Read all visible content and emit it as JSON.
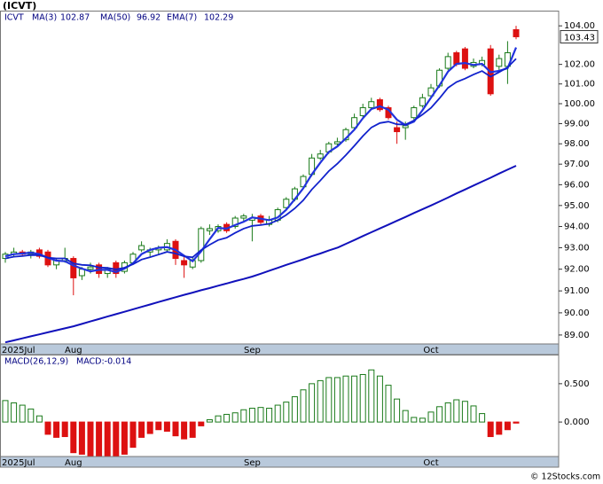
{
  "chart_data": [
    {
      "type": "candlestick",
      "title": "(ICVT)",
      "symbol": "ICVT",
      "log": true,
      "categories": [
        "2025Jul",
        null,
        null,
        null,
        null,
        null,
        null,
        null,
        "Aug",
        null,
        null,
        null,
        null,
        null,
        null,
        null,
        null,
        null,
        null,
        null,
        null,
        null,
        null,
        null,
        null,
        null,
        null,
        null,
        null,
        "Sep",
        null,
        null,
        null,
        null,
        null,
        null,
        null,
        null,
        null,
        null,
        null,
        null,
        null,
        null,
        null,
        null,
        null,
        null,
        null,
        null,
        "Oct",
        null,
        null,
        null,
        null,
        null,
        null,
        null,
        null,
        null,
        null
      ],
      "open": [
        92.5,
        92.7,
        92.8,
        92.7,
        92.9,
        92.8,
        92.2,
        92.4,
        92.5,
        91.7,
        92.0,
        92.2,
        91.8,
        92.3,
        91.9,
        92.3,
        92.9,
        92.8,
        92.9,
        92.9,
        93.3,
        92.4,
        92.1,
        92.4,
        93.8,
        93.8,
        94.1,
        94.0,
        94.4,
        94.3,
        94.5,
        94.1,
        94.3,
        94.9,
        95.3,
        95.9,
        96.5,
        97.3,
        97.6,
        98.0,
        98.2,
        98.8,
        99.4,
        99.8,
        100.2,
        99.8,
        98.8,
        98.8,
        99.3,
        99.9,
        100.4,
        100.9,
        101.8,
        102.6,
        102.8,
        101.9,
        102.0,
        102.8,
        101.9,
        101.9,
        103.8
      ],
      "high": [
        92.8,
        93.0,
        92.9,
        92.9,
        93.0,
        92.9,
        92.5,
        93.0,
        92.6,
        92.1,
        92.3,
        92.3,
        92.1,
        92.4,
        92.4,
        92.8,
        93.3,
        93.0,
        93.1,
        93.4,
        93.4,
        92.6,
        92.6,
        94.0,
        94.1,
        94.1,
        94.2,
        94.5,
        94.6,
        94.6,
        94.6,
        94.5,
        94.9,
        95.4,
        95.9,
        96.5,
        97.5,
        97.7,
        98.1,
        98.3,
        98.8,
        99.5,
        100.0,
        100.3,
        100.3,
        99.9,
        99.1,
        99.1,
        99.9,
        100.5,
        101.0,
        101.8,
        102.6,
        102.7,
        102.9,
        102.3,
        102.4,
        103.0,
        102.5,
        103.2,
        104.0
      ],
      "low": [
        92.3,
        92.6,
        92.6,
        92.5,
        92.5,
        92.1,
        92.0,
        92.3,
        90.8,
        91.5,
        91.8,
        91.6,
        91.6,
        91.6,
        91.8,
        92.2,
        92.8,
        92.6,
        92.7,
        92.8,
        92.2,
        91.6,
        92.0,
        92.3,
        93.6,
        93.7,
        93.7,
        93.9,
        94.2,
        93.3,
        94.1,
        94.0,
        94.2,
        94.8,
        95.2,
        95.8,
        96.4,
        97.2,
        97.5,
        97.9,
        98.1,
        98.7,
        99.3,
        99.7,
        99.6,
        99.2,
        98.0,
        98.2,
        99.2,
        99.8,
        100.3,
        100.8,
        101.7,
        101.9,
        101.7,
        101.8,
        101.9,
        100.4,
        101.7,
        101.0,
        103.3
      ],
      "close": [
        92.7,
        92.8,
        92.7,
        92.8,
        92.6,
        92.2,
        92.4,
        92.5,
        91.6,
        92.0,
        92.1,
        91.8,
        92.0,
        91.8,
        92.3,
        92.7,
        93.1,
        92.9,
        93.0,
        93.2,
        92.5,
        92.2,
        92.4,
        93.9,
        93.9,
        94.0,
        93.8,
        94.4,
        94.5,
        94.4,
        94.2,
        94.3,
        94.8,
        95.3,
        95.8,
        96.4,
        97.3,
        97.5,
        98.0,
        98.1,
        98.7,
        99.3,
        99.8,
        100.1,
        99.7,
        99.3,
        98.6,
        98.9,
        99.8,
        100.3,
        100.8,
        101.7,
        102.4,
        102.0,
        101.8,
        102.1,
        102.2,
        100.5,
        102.3,
        102.6,
        103.43
      ],
      "up_color": "#1a7a1a",
      "down_color": "#dd1111",
      "series": [
        {
          "name": "MA(3)",
          "color": "#2233dd",
          "width": 2.2,
          "values": [
            92.6,
            92.7,
            92.73,
            92.77,
            92.7,
            92.53,
            92.4,
            92.37,
            92.17,
            92.03,
            91.9,
            91.97,
            91.97,
            91.87,
            92.03,
            92.27,
            92.7,
            92.9,
            93.0,
            93.03,
            92.9,
            92.63,
            92.37,
            92.83,
            93.4,
            93.93,
            93.9,
            94.07,
            94.23,
            94.43,
            94.37,
            94.3,
            94.43,
            94.8,
            95.3,
            95.83,
            96.5,
            97.07,
            97.6,
            97.87,
            98.27,
            98.7,
            99.27,
            99.73,
            99.87,
            99.7,
            99.2,
            98.93,
            99.1,
            99.67,
            100.3,
            100.93,
            101.63,
            102.03,
            102.07,
            101.97,
            102.03,
            101.6,
            101.67,
            101.8,
            102.87
          ]
        },
        {
          "name": "MA(50)",
          "color": "#1111bb",
          "width": 2,
          "values": [
            88.67,
            88.76,
            88.85,
            88.94,
            89.03,
            89.12,
            89.21,
            89.3,
            89.39,
            89.5,
            89.61,
            89.72,
            89.83,
            89.94,
            90.05,
            90.16,
            90.27,
            90.38,
            90.49,
            90.6,
            90.71,
            90.82,
            90.92,
            91.03,
            91.13,
            91.24,
            91.34,
            91.45,
            91.55,
            91.66,
            91.79,
            91.93,
            92.06,
            92.2,
            92.33,
            92.46,
            92.6,
            92.73,
            92.87,
            93.0,
            93.18,
            93.36,
            93.55,
            93.73,
            93.91,
            94.09,
            94.27,
            94.45,
            94.64,
            94.82,
            95.0,
            95.19,
            95.38,
            95.58,
            95.77,
            95.96,
            96.15,
            96.34,
            96.54,
            96.73,
            96.92
          ]
        },
        {
          "name": "EMA(7)",
          "color": "#1122cc",
          "width": 1.8,
          "values": [
            92.5,
            92.58,
            92.61,
            92.66,
            92.65,
            92.54,
            92.5,
            92.5,
            92.27,
            92.2,
            92.18,
            92.08,
            92.06,
            91.99,
            92.07,
            92.23,
            92.45,
            92.56,
            92.68,
            92.81,
            92.73,
            92.6,
            92.55,
            92.89,
            93.14,
            93.36,
            93.47,
            93.7,
            93.9,
            94.03,
            94.07,
            94.13,
            94.3,
            94.55,
            94.86,
            95.25,
            95.77,
            96.2,
            96.66,
            97.02,
            97.44,
            97.9,
            98.38,
            98.81,
            99.03,
            99.1,
            98.97,
            98.95,
            99.16,
            99.45,
            99.79,
            100.27,
            100.8,
            101.1,
            101.27,
            101.48,
            101.66,
            101.37,
            101.6,
            101.85,
            102.29
          ]
        }
      ],
      "ylim": [
        88.6,
        104.8
      ],
      "yticks": [
        {
          "value": 89,
          "label": "89.00"
        },
        {
          "value": 90,
          "label": "90.00"
        },
        {
          "value": 91,
          "label": "91.00"
        },
        {
          "value": 92,
          "label": "92.00"
        },
        {
          "value": 93,
          "label": "93.00"
        },
        {
          "value": 94,
          "label": "94.00"
        },
        {
          "value": 95,
          "label": "95.00"
        },
        {
          "value": 96,
          "label": "96.00"
        },
        {
          "value": 97,
          "label": "97.00"
        },
        {
          "value": 98,
          "label": "98.00"
        },
        {
          "value": 99,
          "label": "99.00"
        },
        {
          "value": 100,
          "label": "100.00"
        },
        {
          "value": 101,
          "label": "101.00"
        },
        {
          "value": 102,
          "label": "102.00"
        },
        {
          "value": 104,
          "label": "104.00"
        }
      ]
    },
    {
      "type": "bar",
      "title": "MACD(26,12,9)",
      "subtitle": "MACD:-0.014",
      "categories": [
        "2025Jul",
        null,
        null,
        null,
        null,
        null,
        null,
        null,
        "Aug",
        null,
        null,
        null,
        null,
        null,
        null,
        null,
        null,
        null,
        null,
        null,
        null,
        null,
        null,
        null,
        null,
        null,
        null,
        null,
        null,
        "Sep",
        null,
        null,
        null,
        null,
        null,
        null,
        null,
        null,
        null,
        null,
        null,
        null,
        null,
        null,
        null,
        null,
        null,
        null,
        null,
        null,
        "Oct",
        null,
        null,
        null,
        null,
        null,
        null,
        null,
        null,
        null,
        null
      ],
      "values": [
        0.28,
        0.25,
        0.22,
        0.17,
        0.08,
        -0.16,
        -0.2,
        -0.19,
        -0.4,
        -0.42,
        -0.44,
        -0.44,
        -0.44,
        -0.44,
        -0.42,
        -0.33,
        -0.2,
        -0.15,
        -0.1,
        -0.12,
        -0.18,
        -0.22,
        -0.2,
        -0.05,
        0.03,
        0.08,
        0.1,
        0.12,
        0.16,
        0.18,
        0.19,
        0.18,
        0.22,
        0.26,
        0.33,
        0.42,
        0.5,
        0.54,
        0.58,
        0.58,
        0.6,
        0.6,
        0.62,
        0.68,
        0.6,
        0.48,
        0.3,
        0.15,
        0.06,
        0.05,
        0.13,
        0.2,
        0.25,
        0.29,
        0.27,
        0.21,
        0.11,
        -0.19,
        -0.16,
        -0.1,
        -0.014
      ],
      "pos_color": "#1a7a1a",
      "neg_color": "#dd1111",
      "ylim": [
        -0.45,
        0.88
      ],
      "yticks": [
        {
          "value": 0.5,
          "label": "0.500"
        },
        {
          "value": 0,
          "label": "0.000"
        }
      ]
    }
  ],
  "footer": "© 12Stocks.com"
}
